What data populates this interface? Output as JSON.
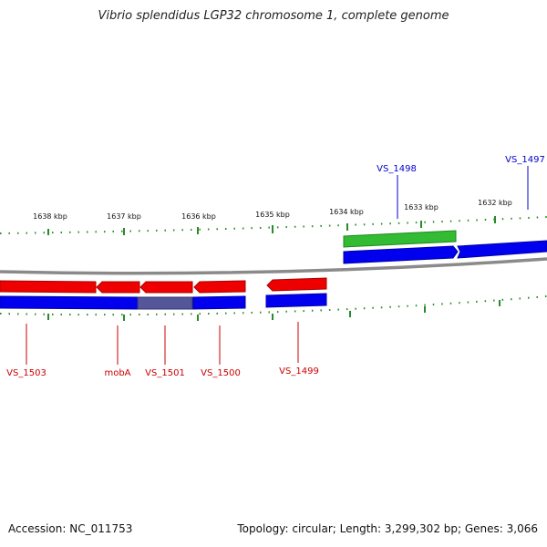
{
  "title": "Vibrio splendidus LGP32 chromosome 1, complete genome",
  "footer": {
    "accession": "Accession: NC_011753",
    "summary": "Topology: circular; Length: 3,299,302 bp; Genes: 3,066"
  },
  "colors": {
    "forward_cds": "#0000ee",
    "reverse_cds": "#ee0000",
    "rna_feature": "#33bb33",
    "overlap": "#555599",
    "backbone": "#8a8a8a",
    "tick": "#2a8a2a",
    "forward_label": "#0000cc",
    "reverse_label": "#cc0000"
  },
  "axis_labels": [
    "1638 kbp",
    "1637 kbp",
    "1636 kbp",
    "1635 kbp",
    "1634 kbp",
    "1633 kbp",
    "1632 kbp"
  ],
  "genes": [
    {
      "id": "VS_1503",
      "strand": "reverse"
    },
    {
      "id": "mobA",
      "strand": "reverse"
    },
    {
      "id": "VS_1501",
      "strand": "reverse"
    },
    {
      "id": "VS_1500",
      "strand": "reverse"
    },
    {
      "id": "VS_1499",
      "strand": "reverse"
    },
    {
      "id": "VS_1498",
      "strand": "forward"
    },
    {
      "id": "VS_1497",
      "strand": "forward"
    }
  ]
}
